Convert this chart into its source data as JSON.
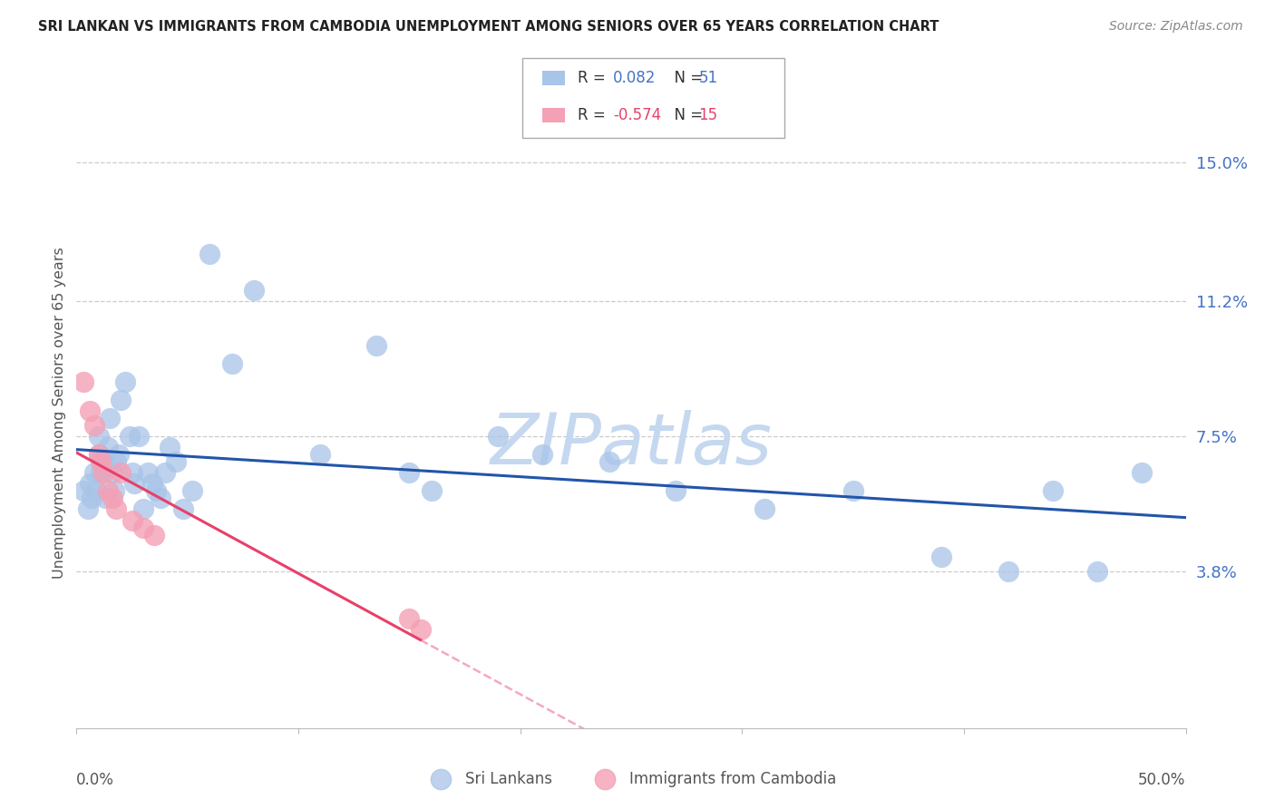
{
  "title": "SRI LANKAN VS IMMIGRANTS FROM CAMBODIA UNEMPLOYMENT AMONG SENIORS OVER 65 YEARS CORRELATION CHART",
  "source": "Source: ZipAtlas.com",
  "ylabel": "Unemployment Among Seniors over 65 years",
  "ytick_values": [
    0.038,
    0.075,
    0.112,
    0.15
  ],
  "ytick_labels": [
    "3.8%",
    "7.5%",
    "11.2%",
    "15.0%"
  ],
  "xlim": [
    0.0,
    0.5
  ],
  "ylim": [
    -0.005,
    0.168
  ],
  "blue_color": "#a8c4e8",
  "pink_color": "#f4a0b5",
  "line_blue": "#2255aa",
  "line_pink": "#e8406a",
  "sri_lankan_x": [
    0.003,
    0.005,
    0.006,
    0.007,
    0.008,
    0.009,
    0.01,
    0.01,
    0.011,
    0.012,
    0.013,
    0.014,
    0.015,
    0.016,
    0.017,
    0.018,
    0.019,
    0.02,
    0.022,
    0.024,
    0.025,
    0.026,
    0.028,
    0.03,
    0.032,
    0.034,
    0.036,
    0.038,
    0.04,
    0.042,
    0.045,
    0.048,
    0.052,
    0.06,
    0.07,
    0.08,
    0.11,
    0.135,
    0.15,
    0.16,
    0.19,
    0.21,
    0.24,
    0.27,
    0.31,
    0.35,
    0.39,
    0.42,
    0.44,
    0.46,
    0.48
  ],
  "sri_lankan_y": [
    0.06,
    0.055,
    0.062,
    0.058,
    0.065,
    0.06,
    0.07,
    0.075,
    0.065,
    0.068,
    0.058,
    0.072,
    0.08,
    0.065,
    0.06,
    0.068,
    0.07,
    0.085,
    0.09,
    0.075,
    0.065,
    0.062,
    0.075,
    0.055,
    0.065,
    0.062,
    0.06,
    0.058,
    0.065,
    0.072,
    0.068,
    0.055,
    0.06,
    0.125,
    0.095,
    0.115,
    0.07,
    0.1,
    0.065,
    0.06,
    0.075,
    0.07,
    0.068,
    0.06,
    0.055,
    0.06,
    0.042,
    0.038,
    0.06,
    0.038,
    0.065
  ],
  "cambodia_x": [
    0.003,
    0.006,
    0.008,
    0.01,
    0.011,
    0.012,
    0.014,
    0.016,
    0.018,
    0.02,
    0.025,
    0.03,
    0.035,
    0.15,
    0.155
  ],
  "cambodia_y": [
    0.09,
    0.082,
    0.078,
    0.07,
    0.068,
    0.065,
    0.06,
    0.058,
    0.055,
    0.065,
    0.052,
    0.05,
    0.048,
    0.025,
    0.022
  ],
  "sri_r": 0.082,
  "sri_n": 51,
  "cam_r": -0.574,
  "cam_n": 15,
  "watermark_text": "ZIPatlas",
  "watermark_color": "#c5d8f0",
  "background_color": "#ffffff",
  "grid_color": "#cccccc",
  "tick_color": "#4472c4",
  "title_color": "#222222",
  "source_color": "#888888",
  "ylabel_color": "#555555"
}
